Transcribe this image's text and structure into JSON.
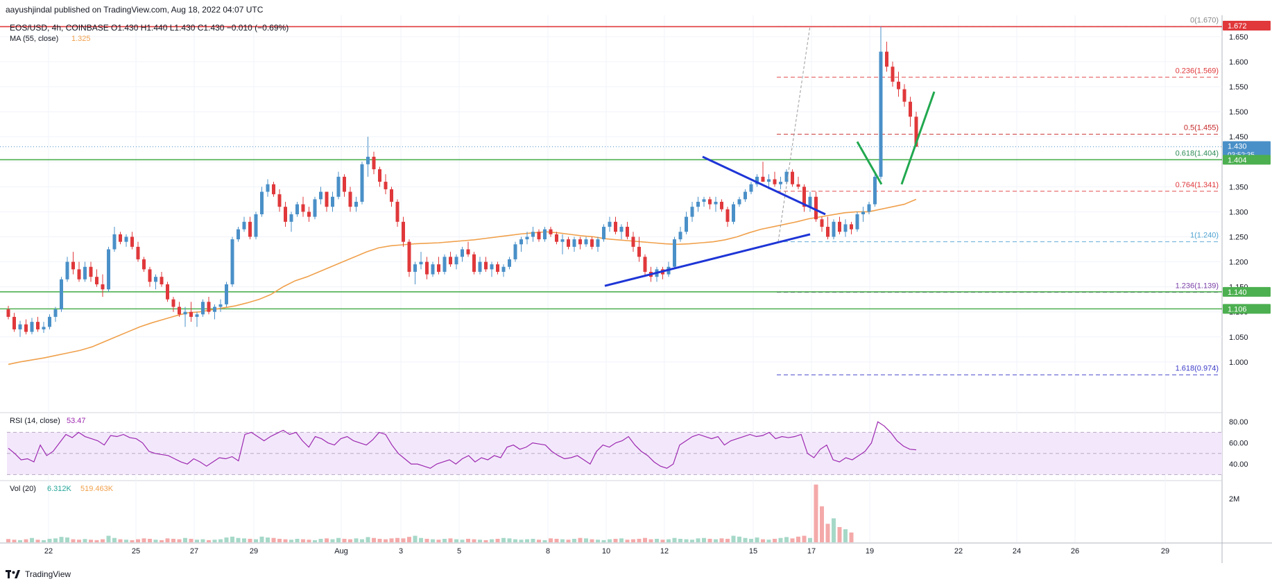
{
  "header": {
    "published": "aayushjindal published on TradingView.com, Aug 18, 2022 04:07 UTC"
  },
  "footer": {
    "brand": "TradingView"
  },
  "colors": {
    "up": "#4a90c8",
    "down": "#e0383b",
    "ma": "#f0a04b",
    "support": "#4caf50",
    "resistance": "#e0383b",
    "trend": "#1e35d6",
    "projection": "#21a84f",
    "rsi": "#9c27b0",
    "volUp": "#a6d8c8",
    "volDown": "#f4a9a9"
  },
  "legend": {
    "symbol": "EOS/USD, 4h, COINBASE",
    "ohlc": "O1.430  H1.440  L1.430  C1.430  −0.010 (−0.69%)",
    "ma_label": "MA (55, close)",
    "ma_value": "1.325",
    "rsi_label": "RSI (14, close)",
    "rsi_value": "53.47",
    "vol_label": "Vol (20)",
    "vol_value1": "6.312K",
    "vol_value2": "519.463K"
  },
  "chart_data": {
    "type": "candlestick",
    "title": "EOS/USD, 4h, COINBASE",
    "currency_label": "USD",
    "ylim": [
      0.9,
      1.69
    ],
    "y_ticks": [
      "1.000",
      "1.050",
      "1.100",
      "1.150",
      "1.200",
      "1.250",
      "1.300",
      "1.350",
      "1.400",
      "1.450",
      "1.500",
      "1.550",
      "1.600",
      "1.650"
    ],
    "x_ticks": [
      "22",
      "25",
      "27",
      "29",
      "Aug",
      "3",
      "5",
      "8",
      "10",
      "12",
      "15",
      "17",
      "19",
      "22",
      "24",
      "26",
      "29"
    ],
    "price_badges": [
      {
        "label": "1.672",
        "value": 1.672,
        "color": "#e0383b"
      },
      {
        "label": "1.430",
        "sub": "03:52:35",
        "value": 1.43,
        "color": "#4a90c8"
      },
      {
        "label": "1.404",
        "value": 1.404,
        "color": "#4caf50"
      },
      {
        "label": "1.140",
        "value": 1.14,
        "color": "#4caf50"
      },
      {
        "label": "1.106",
        "value": 1.106,
        "color": "#4caf50"
      }
    ],
    "horizontal_levels": [
      {
        "value": 1.67,
        "color": "#e0383b"
      },
      {
        "value": 1.404,
        "color": "#4caf50"
      },
      {
        "value": 1.14,
        "color": "#4caf50"
      },
      {
        "value": 1.106,
        "color": "#4caf50"
      }
    ],
    "fibonacci": [
      {
        "ratio": "0",
        "value": 1.67,
        "label": "0(1.670)",
        "color": "#888888"
      },
      {
        "ratio": "0.236",
        "value": 1.569,
        "label": "0.236(1.569)",
        "color": "#e0383b"
      },
      {
        "ratio": "0.5",
        "value": 1.455,
        "label": "0.5(1.455)",
        "color": "#c62828"
      },
      {
        "ratio": "0.618",
        "value": 1.404,
        "label": "0.618(1.404)",
        "color": "#2e8b57"
      },
      {
        "ratio": "0.764",
        "value": 1.341,
        "label": "0.764(1.341)",
        "color": "#e0383b"
      },
      {
        "ratio": "1",
        "value": 1.24,
        "label": "1(1.240)",
        "color": "#4fa3d1"
      },
      {
        "ratio": "1.236",
        "value": 1.139,
        "label": "1.236(1.139)",
        "color": "#7b3fa6"
      },
      {
        "ratio": "1.618",
        "value": 0.974,
        "label": "1.618(0.974)",
        "color": "#3a3ac8"
      }
    ],
    "candles": [
      [
        1.105,
        1.112,
        1.085,
        1.09
      ],
      [
        1.09,
        1.098,
        1.06,
        1.065
      ],
      [
        1.065,
        1.082,
        1.05,
        1.075
      ],
      [
        1.075,
        1.085,
        1.055,
        1.06
      ],
      [
        1.06,
        1.088,
        1.055,
        1.08
      ],
      [
        1.08,
        1.09,
        1.06,
        1.065
      ],
      [
        1.065,
        1.08,
        1.058,
        1.07
      ],
      [
        1.07,
        1.095,
        1.065,
        1.09
      ],
      [
        1.09,
        1.11,
        1.08,
        1.105
      ],
      [
        1.105,
        1.17,
        1.1,
        1.165
      ],
      [
        1.165,
        1.21,
        1.16,
        1.2
      ],
      [
        1.2,
        1.22,
        1.175,
        1.185
      ],
      [
        1.185,
        1.2,
        1.16,
        1.165
      ],
      [
        1.165,
        1.2,
        1.16,
        1.19
      ],
      [
        1.19,
        1.2,
        1.16,
        1.17
      ],
      [
        1.17,
        1.185,
        1.15,
        1.155
      ],
      [
        1.155,
        1.175,
        1.13,
        1.145
      ],
      [
        1.145,
        1.23,
        1.14,
        1.225
      ],
      [
        1.225,
        1.27,
        1.22,
        1.255
      ],
      [
        1.255,
        1.26,
        1.235,
        1.24
      ],
      [
        1.24,
        1.255,
        1.23,
        1.25
      ],
      [
        1.25,
        1.26,
        1.225,
        1.23
      ],
      [
        1.23,
        1.24,
        1.2,
        1.205
      ],
      [
        1.205,
        1.21,
        1.18,
        1.185
      ],
      [
        1.185,
        1.19,
        1.15,
        1.16
      ],
      [
        1.16,
        1.175,
        1.145,
        1.17
      ],
      [
        1.17,
        1.18,
        1.15,
        1.155
      ],
      [
        1.155,
        1.16,
        1.12,
        1.125
      ],
      [
        1.125,
        1.13,
        1.1,
        1.11
      ],
      [
        1.11,
        1.12,
        1.09,
        1.095
      ],
      [
        1.095,
        1.11,
        1.07,
        1.1
      ],
      [
        1.1,
        1.12,
        1.08,
        1.09
      ],
      [
        1.09,
        1.1,
        1.07,
        1.095
      ],
      [
        1.095,
        1.125,
        1.09,
        1.12
      ],
      [
        1.12,
        1.13,
        1.095,
        1.1
      ],
      [
        1.1,
        1.115,
        1.085,
        1.11
      ],
      [
        1.11,
        1.125,
        1.1,
        1.115
      ],
      [
        1.115,
        1.16,
        1.11,
        1.155
      ],
      [
        1.155,
        1.25,
        1.15,
        1.245
      ],
      [
        1.245,
        1.27,
        1.24,
        1.265
      ],
      [
        1.265,
        1.29,
        1.26,
        1.28
      ],
      [
        1.28,
        1.29,
        1.245,
        1.25
      ],
      [
        1.25,
        1.3,
        1.245,
        1.295
      ],
      [
        1.295,
        1.35,
        1.29,
        1.34
      ],
      [
        1.34,
        1.365,
        1.33,
        1.355
      ],
      [
        1.355,
        1.36,
        1.33,
        1.335
      ],
      [
        1.335,
        1.345,
        1.3,
        1.31
      ],
      [
        1.31,
        1.32,
        1.27,
        1.28
      ],
      [
        1.28,
        1.3,
        1.26,
        1.295
      ],
      [
        1.295,
        1.32,
        1.29,
        1.315
      ],
      [
        1.315,
        1.33,
        1.29,
        1.3
      ],
      [
        1.3,
        1.31,
        1.28,
        1.29
      ],
      [
        1.29,
        1.33,
        1.285,
        1.325
      ],
      [
        1.325,
        1.35,
        1.315,
        1.34
      ],
      [
        1.34,
        1.34,
        1.3,
        1.31
      ],
      [
        1.31,
        1.34,
        1.3,
        1.33
      ],
      [
        1.33,
        1.38,
        1.325,
        1.37
      ],
      [
        1.37,
        1.375,
        1.33,
        1.34
      ],
      [
        1.34,
        1.35,
        1.3,
        1.31
      ],
      [
        1.31,
        1.33,
        1.3,
        1.32
      ],
      [
        1.32,
        1.4,
        1.315,
        1.395
      ],
      [
        1.395,
        1.45,
        1.37,
        1.41
      ],
      [
        1.41,
        1.42,
        1.375,
        1.385
      ],
      [
        1.385,
        1.39,
        1.35,
        1.36
      ],
      [
        1.36,
        1.375,
        1.335,
        1.345
      ],
      [
        1.345,
        1.35,
        1.31,
        1.32
      ],
      [
        1.32,
        1.325,
        1.27,
        1.28
      ],
      [
        1.28,
        1.29,
        1.23,
        1.24
      ],
      [
        1.24,
        1.245,
        1.17,
        1.18
      ],
      [
        1.18,
        1.2,
        1.155,
        1.195
      ],
      [
        1.195,
        1.22,
        1.185,
        1.2
      ],
      [
        1.2,
        1.21,
        1.165,
        1.175
      ],
      [
        1.175,
        1.2,
        1.17,
        1.195
      ],
      [
        1.195,
        1.21,
        1.175,
        1.18
      ],
      [
        1.18,
        1.215,
        1.175,
        1.21
      ],
      [
        1.21,
        1.22,
        1.19,
        1.195
      ],
      [
        1.195,
        1.215,
        1.185,
        1.21
      ],
      [
        1.21,
        1.23,
        1.2,
        1.225
      ],
      [
        1.225,
        1.24,
        1.21,
        1.215
      ],
      [
        1.215,
        1.22,
        1.175,
        1.18
      ],
      [
        1.18,
        1.21,
        1.175,
        1.2
      ],
      [
        1.2,
        1.21,
        1.18,
        1.185
      ],
      [
        1.185,
        1.2,
        1.17,
        1.195
      ],
      [
        1.195,
        1.2,
        1.175,
        1.18
      ],
      [
        1.18,
        1.195,
        1.17,
        1.19
      ],
      [
        1.19,
        1.21,
        1.185,
        1.205
      ],
      [
        1.205,
        1.24,
        1.2,
        1.235
      ],
      [
        1.235,
        1.25,
        1.22,
        1.245
      ],
      [
        1.245,
        1.26,
        1.235,
        1.25
      ],
      [
        1.25,
        1.27,
        1.24,
        1.26
      ],
      [
        1.26,
        1.265,
        1.24,
        1.245
      ],
      [
        1.245,
        1.27,
        1.24,
        1.265
      ],
      [
        1.265,
        1.27,
        1.25,
        1.255
      ],
      [
        1.255,
        1.26,
        1.235,
        1.24
      ],
      [
        1.24,
        1.255,
        1.215,
        1.245
      ],
      [
        1.245,
        1.25,
        1.225,
        1.23
      ],
      [
        1.23,
        1.25,
        1.22,
        1.245
      ],
      [
        1.245,
        1.25,
        1.225,
        1.235
      ],
      [
        1.235,
        1.25,
        1.23,
        1.245
      ],
      [
        1.245,
        1.25,
        1.225,
        1.23
      ],
      [
        1.23,
        1.25,
        1.22,
        1.245
      ],
      [
        1.245,
        1.275,
        1.24,
        1.27
      ],
      [
        1.27,
        1.29,
        1.26,
        1.28
      ],
      [
        1.28,
        1.29,
        1.255,
        1.26
      ],
      [
        1.26,
        1.275,
        1.245,
        1.27
      ],
      [
        1.27,
        1.28,
        1.245,
        1.25
      ],
      [
        1.25,
        1.26,
        1.22,
        1.23
      ],
      [
        1.23,
        1.25,
        1.2,
        1.21
      ],
      [
        1.21,
        1.215,
        1.17,
        1.18
      ],
      [
        1.18,
        1.19,
        1.16,
        1.17
      ],
      [
        1.17,
        1.19,
        1.16,
        1.185
      ],
      [
        1.185,
        1.19,
        1.165,
        1.175
      ],
      [
        1.175,
        1.2,
        1.17,
        1.19
      ],
      [
        1.19,
        1.25,
        1.185,
        1.245
      ],
      [
        1.245,
        1.27,
        1.24,
        1.26
      ],
      [
        1.26,
        1.3,
        1.255,
        1.29
      ],
      [
        1.29,
        1.32,
        1.28,
        1.31
      ],
      [
        1.31,
        1.33,
        1.3,
        1.32
      ],
      [
        1.32,
        1.33,
        1.31,
        1.325
      ],
      [
        1.325,
        1.33,
        1.305,
        1.315
      ],
      [
        1.315,
        1.33,
        1.3,
        1.32
      ],
      [
        1.32,
        1.325,
        1.3,
        1.305
      ],
      [
        1.305,
        1.31,
        1.27,
        1.28
      ],
      [
        1.28,
        1.32,
        1.275,
        1.315
      ],
      [
        1.315,
        1.33,
        1.31,
        1.325
      ],
      [
        1.325,
        1.345,
        1.32,
        1.34
      ],
      [
        1.34,
        1.36,
        1.335,
        1.355
      ],
      [
        1.355,
        1.375,
        1.35,
        1.37
      ],
      [
        1.37,
        1.4,
        1.36,
        1.36
      ],
      [
        1.36,
        1.375,
        1.345,
        1.365
      ],
      [
        1.365,
        1.38,
        1.35,
        1.355
      ],
      [
        1.355,
        1.37,
        1.345,
        1.36
      ],
      [
        1.36,
        1.385,
        1.355,
        1.38
      ],
      [
        1.38,
        1.385,
        1.35,
        1.355
      ],
      [
        1.355,
        1.37,
        1.345,
        1.35
      ],
      [
        1.35,
        1.355,
        1.3,
        1.31
      ],
      [
        1.31,
        1.34,
        1.3,
        1.33
      ],
      [
        1.33,
        1.34,
        1.28,
        1.285
      ],
      [
        1.285,
        1.29,
        1.26,
        1.27
      ],
      [
        1.27,
        1.29,
        1.245,
        1.25
      ],
      [
        1.25,
        1.285,
        1.245,
        1.28
      ],
      [
        1.28,
        1.29,
        1.255,
        1.26
      ],
      [
        1.26,
        1.285,
        1.25,
        1.275
      ],
      [
        1.275,
        1.28,
        1.255,
        1.265
      ],
      [
        1.265,
        1.3,
        1.26,
        1.295
      ],
      [
        1.295,
        1.31,
        1.28,
        1.3
      ],
      [
        1.3,
        1.32,
        1.295,
        1.315
      ],
      [
        1.315,
        1.375,
        1.31,
        1.37
      ],
      [
        1.37,
        1.67,
        1.365,
        1.62
      ],
      [
        1.62,
        1.64,
        1.58,
        1.59
      ],
      [
        1.59,
        1.6,
        1.55,
        1.56
      ],
      [
        1.56,
        1.58,
        1.53,
        1.545
      ],
      [
        1.545,
        1.555,
        1.51,
        1.52
      ],
      [
        1.52,
        1.53,
        1.47,
        1.49
      ],
      [
        1.49,
        1.5,
        1.43,
        1.43
      ]
    ],
    "ma55_values": [
      0.995,
      1.0,
      1.004,
      1.008,
      1.013,
      1.018,
      1.023,
      1.03,
      1.04,
      1.05,
      1.06,
      1.07,
      1.078,
      1.085,
      1.092,
      1.098,
      1.1,
      1.104,
      1.108,
      1.112,
      1.118,
      1.125,
      1.135,
      1.15,
      1.162,
      1.17,
      1.18,
      1.19,
      1.2,
      1.21,
      1.22,
      1.228,
      1.232,
      1.234,
      1.236,
      1.237,
      1.238,
      1.24,
      1.242,
      1.244,
      1.247,
      1.25,
      1.253,
      1.256,
      1.258,
      1.26,
      1.258,
      1.255,
      1.252,
      1.25,
      1.246,
      1.244,
      1.242,
      1.24,
      1.238,
      1.236,
      1.235,
      1.236,
      1.238,
      1.24,
      1.244,
      1.25,
      1.258,
      1.265,
      1.27,
      1.275,
      1.28,
      1.286,
      1.29,
      1.294,
      1.298,
      1.3,
      1.3,
      1.305,
      1.31,
      1.315,
      1.325
    ],
    "rsi": {
      "label": "RSI (14, close)",
      "last": 53.47,
      "ylim": [
        25,
        88
      ],
      "levels": [
        70,
        50,
        30
      ],
      "ticks": [
        "80.00",
        "60.00",
        "40.00"
      ],
      "values": [
        55,
        50,
        44,
        45,
        42,
        58,
        48,
        52,
        60,
        68,
        65,
        70,
        66,
        64,
        62,
        58,
        67,
        66,
        68,
        65,
        64,
        60,
        52,
        50,
        49,
        48,
        45,
        42,
        40,
        45,
        42,
        38,
        42,
        46,
        45,
        47,
        43,
        68,
        70,
        66,
        62,
        66,
        69,
        72,
        68,
        70,
        62,
        56,
        66,
        64,
        60,
        58,
        64,
        66,
        62,
        60,
        58,
        63,
        70,
        68,
        58,
        50,
        45,
        40,
        40,
        38,
        36,
        40,
        42,
        44,
        40,
        45,
        48,
        42,
        46,
        44,
        48,
        46,
        56,
        58,
        54,
        56,
        60,
        59,
        58,
        52,
        48,
        45,
        46,
        48,
        44,
        40,
        52,
        58,
        56,
        60,
        62,
        66,
        58,
        52,
        48,
        42,
        38,
        36,
        40,
        58,
        62,
        66,
        68,
        66,
        64,
        66,
        58,
        62,
        64,
        66,
        68,
        66,
        67,
        70,
        64,
        66,
        65,
        66,
        68,
        50,
        46,
        54,
        58,
        44,
        42,
        46,
        44,
        48,
        52,
        60,
        80,
        76,
        70,
        62,
        57,
        54,
        53.47
      ]
    },
    "volume": {
      "label": "Vol (20)",
      "tick": "2M",
      "ylim": [
        0,
        2.8
      ],
      "values": [
        0.15,
        0.12,
        0.1,
        0.14,
        0.2,
        0.12,
        0.1,
        0.16,
        0.18,
        0.25,
        0.22,
        0.14,
        0.12,
        0.15,
        0.12,
        0.1,
        0.14,
        0.3,
        0.2,
        0.14,
        0.12,
        0.1,
        0.14,
        0.18,
        0.16,
        0.12,
        0.1,
        0.18,
        0.16,
        0.14,
        0.2,
        0.16,
        0.12,
        0.14,
        0.1,
        0.12,
        0.14,
        0.22,
        0.26,
        0.2,
        0.18,
        0.16,
        0.14,
        0.26,
        0.22,
        0.2,
        0.16,
        0.14,
        0.12,
        0.16,
        0.14,
        0.12,
        0.1,
        0.16,
        0.18,
        0.14,
        0.2,
        0.16,
        0.14,
        0.18,
        0.14,
        0.24,
        0.2,
        0.16,
        0.14,
        0.18,
        0.2,
        0.18,
        0.25,
        0.3,
        0.2,
        0.16,
        0.14,
        0.12,
        0.16,
        0.18,
        0.14,
        0.12,
        0.16,
        0.14,
        0.12,
        0.1,
        0.14,
        0.16,
        0.2,
        0.18,
        0.14,
        0.12,
        0.14,
        0.16,
        0.12,
        0.1,
        0.18,
        0.16,
        0.14,
        0.12,
        0.16,
        0.2,
        0.18,
        0.14,
        0.12,
        0.1,
        0.14,
        0.16,
        0.18,
        0.12,
        0.14,
        0.16,
        0.2,
        0.14,
        0.16,
        0.12,
        0.14,
        0.2,
        0.16,
        0.14,
        0.12,
        0.18,
        0.2,
        0.16,
        0.14,
        0.18,
        0.16,
        0.3,
        0.26,
        0.2,
        0.16,
        0.22,
        0.14,
        0.12,
        0.16,
        0.2,
        0.24,
        0.18,
        0.26,
        0.3,
        0.2,
        2.65,
        1.65,
        0.85,
        1.1,
        0.7,
        0.6,
        0.45
      ]
    }
  }
}
